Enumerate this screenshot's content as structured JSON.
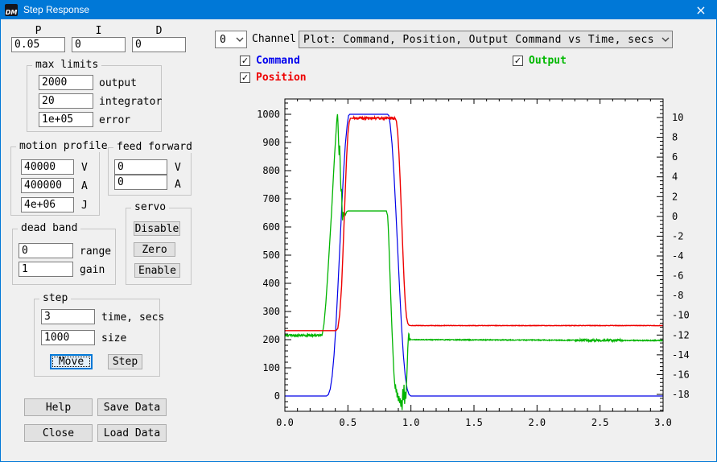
{
  "window": {
    "title": "Step Response",
    "icon_text": "DM",
    "close_glyph": "×"
  },
  "pid": {
    "p_label": "P",
    "i_label": "I",
    "d_label": "D",
    "p_value": "0.05",
    "i_value": "0",
    "d_value": "0"
  },
  "channel": {
    "value": "0",
    "label": "Channel"
  },
  "plot_select": {
    "value": "Plot: Command, Position, Output Command vs Time, secs"
  },
  "legend": {
    "command": {
      "label": "Command",
      "color": "#0000ee",
      "check": "✓"
    },
    "position": {
      "label": "Position",
      "color": "#ee0000",
      "check": "✓"
    },
    "output": {
      "label": "Output",
      "color": "#00b800",
      "check": "✓"
    }
  },
  "max_limits": {
    "title": "max limits",
    "fields": [
      {
        "value": "2000",
        "label": "output"
      },
      {
        "value": "20",
        "label": "integrator"
      },
      {
        "value": "1e+05",
        "label": "error"
      }
    ]
  },
  "motion_profile": {
    "title": "motion profile",
    "fields": [
      {
        "value": "40000",
        "label": "V"
      },
      {
        "value": "400000",
        "label": "A"
      },
      {
        "value": "4e+06",
        "label": "J"
      }
    ]
  },
  "feed_forward": {
    "title": "feed forward",
    "fields": [
      {
        "value": "0",
        "label": "V"
      },
      {
        "value": "0",
        "label": "A"
      }
    ]
  },
  "servo": {
    "title": "servo",
    "buttons": [
      "Disable",
      "Zero",
      "Enable"
    ]
  },
  "dead_band": {
    "title": "dead band",
    "fields": [
      {
        "value": "0",
        "label": "range"
      },
      {
        "value": "1",
        "label": "gain"
      }
    ]
  },
  "step": {
    "title": "step",
    "fields": [
      {
        "value": "3",
        "label": "time, secs"
      },
      {
        "value": "1000",
        "label": "size"
      }
    ],
    "move_label": "Move",
    "step_label": "Step"
  },
  "actions": {
    "help": "Help",
    "save": "Save Data",
    "close": "Close",
    "load": "Load Data"
  },
  "chart_data": {
    "type": "line",
    "title": "",
    "xlabel": "",
    "ylabel_left": "",
    "ylabel_right": "",
    "grid": false,
    "legend_position": "none",
    "x_range": [
      0,
      3
    ],
    "x_major_ticks": [
      0.0,
      0.5,
      1.0,
      1.5,
      2.0,
      2.5,
      3.0
    ],
    "x_minor_step": 0.1,
    "left_axis": {
      "major_ticks": [
        0,
        100,
        200,
        300,
        400,
        500,
        600,
        700,
        800,
        900,
        1000
      ],
      "minor_step": 20,
      "visible_range": [
        -54,
        1054
      ]
    },
    "right_axis": {
      "major_ticks": [
        10,
        8,
        6,
        4,
        2,
        0,
        -2,
        -4,
        -6,
        -8,
        -10,
        -12,
        -14,
        -16,
        -18
      ],
      "minor_step": 0.4,
      "visible_range": [
        -19.7,
        11.9
      ]
    },
    "series": [
      {
        "name": "Command",
        "color": "#0000e8",
        "axis": "left",
        "width": 1.2,
        "points": [
          [
            0,
            0
          ],
          [
            0.33,
            0
          ],
          [
            0.345,
            5
          ],
          [
            0.36,
            25
          ],
          [
            0.375,
            70
          ],
          [
            0.39,
            145
          ],
          [
            0.405,
            250
          ],
          [
            0.42,
            380
          ],
          [
            0.435,
            520
          ],
          [
            0.45,
            660
          ],
          [
            0.465,
            790
          ],
          [
            0.48,
            895
          ],
          [
            0.495,
            965
          ],
          [
            0.505,
            995
          ],
          [
            0.515,
            1000
          ],
          [
            0.815,
            1000
          ],
          [
            0.825,
            995
          ],
          [
            0.835,
            965
          ],
          [
            0.85,
            895
          ],
          [
            0.865,
            790
          ],
          [
            0.88,
            660
          ],
          [
            0.895,
            520
          ],
          [
            0.91,
            380
          ],
          [
            0.925,
            250
          ],
          [
            0.94,
            145
          ],
          [
            0.955,
            70
          ],
          [
            0.97,
            25
          ],
          [
            0.985,
            5
          ],
          [
            1.0,
            0
          ],
          [
            3.0,
            0
          ]
        ],
        "noise_segments": []
      },
      {
        "name": "Output",
        "color": "#00b400",
        "axis": "right",
        "width": 1.3,
        "points": [
          [
            0,
            215
          ],
          [
            0.295,
            215
          ],
          [
            0.31,
            255
          ],
          [
            0.325,
            330
          ],
          [
            0.34,
            430
          ],
          [
            0.355,
            540
          ],
          [
            0.37,
            650
          ],
          [
            0.385,
            780
          ],
          [
            0.395,
            860
          ],
          [
            0.405,
            930
          ],
          [
            0.413,
            985
          ],
          [
            0.418,
            1002
          ],
          [
            0.422,
            960
          ],
          [
            0.426,
            900
          ],
          [
            0.43,
            855
          ],
          [
            0.434,
            905
          ],
          [
            0.438,
            840
          ],
          [
            0.442,
            760
          ],
          [
            0.446,
            720
          ],
          [
            0.45,
            735
          ],
          [
            0.454,
            650
          ],
          [
            0.458,
            620
          ],
          [
            0.462,
            655
          ],
          [
            0.468,
            635
          ],
          [
            0.474,
            650
          ],
          [
            0.48,
            643
          ],
          [
            0.49,
            654
          ],
          [
            0.5,
            657
          ],
          [
            0.805,
            657
          ],
          [
            0.815,
            640
          ],
          [
            0.82,
            600
          ],
          [
            0.825,
            545
          ],
          [
            0.83,
            480
          ],
          [
            0.84,
            350
          ],
          [
            0.85,
            230
          ],
          [
            0.86,
            130
          ],
          [
            0.865,
            80
          ],
          [
            0.87,
            50
          ],
          [
            0.875,
            25
          ],
          [
            0.878,
            45
          ],
          [
            0.882,
            10
          ],
          [
            0.886,
            30
          ],
          [
            0.89,
            -5
          ],
          [
            0.895,
            12
          ],
          [
            0.9,
            -18
          ],
          [
            0.905,
            0
          ],
          [
            0.91,
            -25
          ],
          [
            0.915,
            -8
          ],
          [
            0.92,
            -38
          ],
          [
            0.925,
            -15
          ],
          [
            0.93,
            -50
          ],
          [
            0.935,
            25
          ],
          [
            0.94,
            -15
          ],
          [
            0.945,
            40
          ],
          [
            0.95,
            -28
          ],
          [
            0.955,
            15
          ],
          [
            0.96,
            -10
          ],
          [
            0.965,
            45
          ],
          [
            0.97,
            100
          ],
          [
            0.975,
            170
          ],
          [
            0.98,
            210
          ],
          [
            0.984,
            228
          ],
          [
            0.988,
            195
          ],
          [
            0.995,
            203
          ],
          [
            1.0,
            200
          ],
          [
            3.0,
            197
          ]
        ],
        "noise_segments": [
          {
            "from": 0.0,
            "to": 0.29,
            "amp": 4
          },
          {
            "from": 1.01,
            "to": 3.0,
            "amp": 1.5
          },
          {
            "from": 2.3,
            "to": 2.68,
            "amp": 4
          }
        ]
      },
      {
        "name": "Position",
        "color": "#ee0000",
        "axis": "left",
        "width": 1.4,
        "points": [
          [
            0,
            232
          ],
          [
            0.405,
            232
          ],
          [
            0.42,
            240
          ],
          [
            0.435,
            290
          ],
          [
            0.45,
            390
          ],
          [
            0.46,
            500
          ],
          [
            0.47,
            620
          ],
          [
            0.48,
            740
          ],
          [
            0.49,
            850
          ],
          [
            0.5,
            930
          ],
          [
            0.51,
            972
          ],
          [
            0.52,
            986
          ],
          [
            0.875,
            986
          ],
          [
            0.885,
            975
          ],
          [
            0.895,
            935
          ],
          [
            0.905,
            860
          ],
          [
            0.915,
            760
          ],
          [
            0.925,
            645
          ],
          [
            0.935,
            525
          ],
          [
            0.945,
            415
          ],
          [
            0.955,
            330
          ],
          [
            0.965,
            280
          ],
          [
            0.975,
            258
          ],
          [
            0.985,
            251
          ],
          [
            1.0,
            250
          ],
          [
            3.0,
            250
          ]
        ],
        "noise_segments": [
          {
            "from": 0.53,
            "to": 0.87,
            "amp": 4
          },
          {
            "from": 1.0,
            "to": 3.0,
            "amp": 0.8
          }
        ]
      }
    ]
  }
}
